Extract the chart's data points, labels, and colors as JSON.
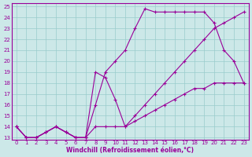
{
  "xlabel": "Windchill (Refroidissement éolien,°C)",
  "line_color": "#990099",
  "bg_color": "#cce8e8",
  "grid_color": "#99cccc",
  "xlim": [
    0,
    23
  ],
  "ylim": [
    13,
    25
  ],
  "xticks": [
    0,
    1,
    2,
    3,
    4,
    5,
    6,
    7,
    8,
    9,
    10,
    11,
    12,
    13,
    14,
    15,
    16,
    17,
    18,
    19,
    20,
    21,
    22,
    23
  ],
  "yticks": [
    13,
    14,
    15,
    16,
    17,
    18,
    19,
    20,
    21,
    22,
    23,
    24,
    25
  ],
  "line1_x": [
    0,
    1,
    2,
    3,
    4,
    5,
    6,
    7,
    8,
    9,
    10,
    11,
    12,
    13,
    14,
    15,
    16,
    17,
    18,
    19,
    20,
    21,
    22,
    23
  ],
  "line1_y": [
    14,
    13,
    13,
    13.5,
    14,
    13.5,
    13,
    13,
    14,
    14,
    14,
    14,
    14.5,
    15,
    15.5,
    16,
    16.5,
    17,
    17.5,
    17.5,
    18,
    18,
    18,
    18
  ],
  "line2_x": [
    0,
    1,
    2,
    3,
    4,
    5,
    6,
    7,
    8,
    9,
    10,
    11,
    12,
    13,
    14,
    15,
    16,
    17,
    18,
    19,
    20,
    21,
    22,
    23
  ],
  "line2_y": [
    14,
    13,
    13,
    13.5,
    14,
    13.5,
    13,
    13,
    19,
    18.5,
    16.5,
    14,
    15,
    16,
    17,
    18,
    19,
    20,
    21,
    22,
    23,
    23.5,
    24,
    24.5
  ],
  "line3_x": [
    0,
    1,
    2,
    3,
    4,
    5,
    6,
    7,
    8,
    9,
    10,
    11,
    12,
    13,
    14,
    15,
    16,
    17,
    18,
    19,
    20,
    21,
    22,
    23
  ],
  "line3_y": [
    14,
    13,
    13,
    13.5,
    14,
    13.5,
    13,
    13,
    16,
    19,
    20,
    21,
    23,
    24.8,
    24.5,
    24.5,
    24.5,
    24.5,
    24.5,
    24.5,
    23.5,
    21,
    20,
    18
  ]
}
